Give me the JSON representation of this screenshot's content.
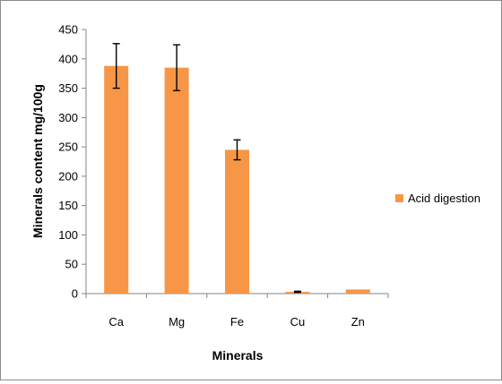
{
  "chart_data": {
    "type": "bar",
    "title": "",
    "xlabel": "Minerals",
    "ylabel": "Minerals content mg/100g",
    "categories": [
      "Ca",
      "Mg",
      "Fe",
      "Cu",
      "Zn"
    ],
    "series": [
      {
        "name": "Acid digestion",
        "color": "#F79646",
        "values": [
          388,
          385,
          245,
          3,
          7
        ],
        "error": [
          38,
          39,
          17,
          1,
          0
        ]
      }
    ],
    "ylim": [
      0,
      450
    ],
    "yticks": [
      0,
      50,
      100,
      150,
      200,
      250,
      300,
      350,
      400,
      450
    ],
    "grid": false,
    "legend_position": "right"
  }
}
